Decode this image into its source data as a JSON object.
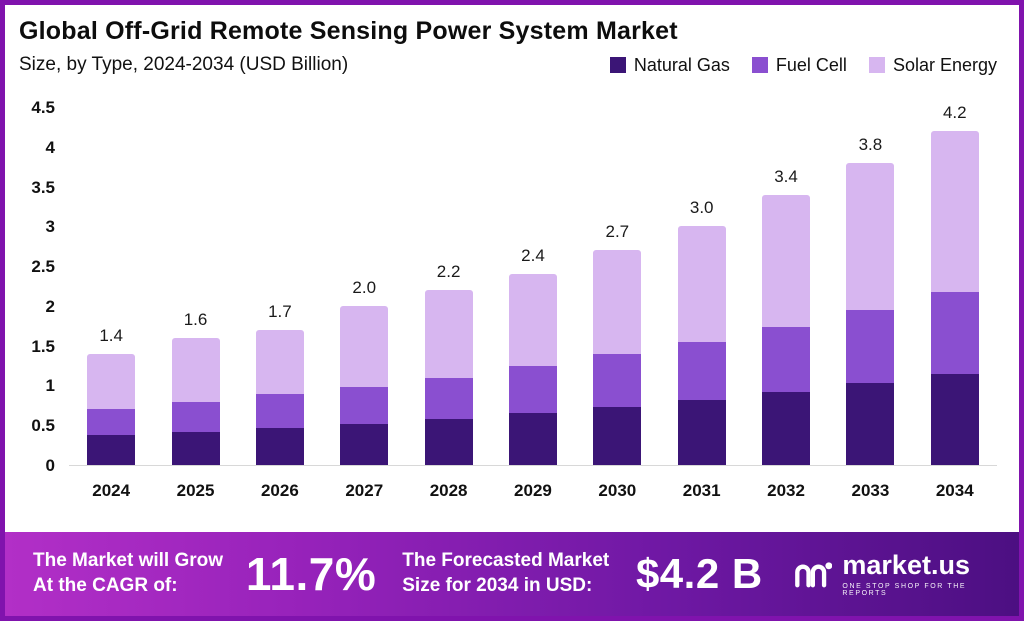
{
  "header": {
    "title": "Global Off-Grid Remote Sensing Power System Market",
    "subtitle": "Size, by Type, 2024-2034 (USD Billion)"
  },
  "legend": [
    {
      "label": "Natural Gas",
      "color": "#3B1576"
    },
    {
      "label": "Fuel Cell",
      "color": "#8A4FD0"
    },
    {
      "label": "Solar Energy",
      "color": "#D7B6F0"
    }
  ],
  "chart_data": {
    "type": "bar",
    "stacked": true,
    "title": "Global Off-Grid Remote Sensing Power System Market",
    "subtitle": "Size, by Type, 2024-2034 (USD Billion)",
    "categories": [
      "2024",
      "2025",
      "2026",
      "2027",
      "2028",
      "2029",
      "2030",
      "2031",
      "2032",
      "2033",
      "2034"
    ],
    "series": [
      {
        "name": "Natural Gas",
        "color": "#3B1576",
        "values": [
          0.38,
          0.42,
          0.47,
          0.52,
          0.58,
          0.66,
          0.73,
          0.82,
          0.92,
          1.03,
          1.15
        ]
      },
      {
        "name": "Fuel Cell",
        "color": "#8A4FD0",
        "values": [
          0.33,
          0.37,
          0.42,
          0.46,
          0.52,
          0.58,
          0.66,
          0.73,
          0.81,
          0.92,
          1.02
        ]
      },
      {
        "name": "Solar Energy",
        "color": "#D7B6F0",
        "values": [
          0.69,
          0.81,
          0.81,
          1.02,
          1.1,
          1.16,
          1.31,
          1.45,
          1.67,
          1.85,
          2.03
        ]
      }
    ],
    "totals_labels": [
      "1.4",
      "1.6",
      "1.7",
      "2.0",
      "2.2",
      "2.4",
      "2.7",
      "3.0",
      "3.4",
      "3.8",
      "4.2"
    ],
    "ylim": [
      0,
      4.5
    ],
    "yticks": [
      "0",
      "0.5",
      "1",
      "1.5",
      "2",
      "2.5",
      "3",
      "3.5",
      "4",
      "4.5"
    ],
    "grid": false,
    "legend_position": "top-right"
  },
  "banner": {
    "cagr_label": "The Market will Grow At the CAGR of:",
    "cagr_value": "11.7%",
    "forecast_label": "The Forecasted Market Size for 2034 in USD:",
    "forecast_value": "$4.2 B",
    "brand": "market.us",
    "brand_tagline": "One Stop Shop For The Reports"
  }
}
